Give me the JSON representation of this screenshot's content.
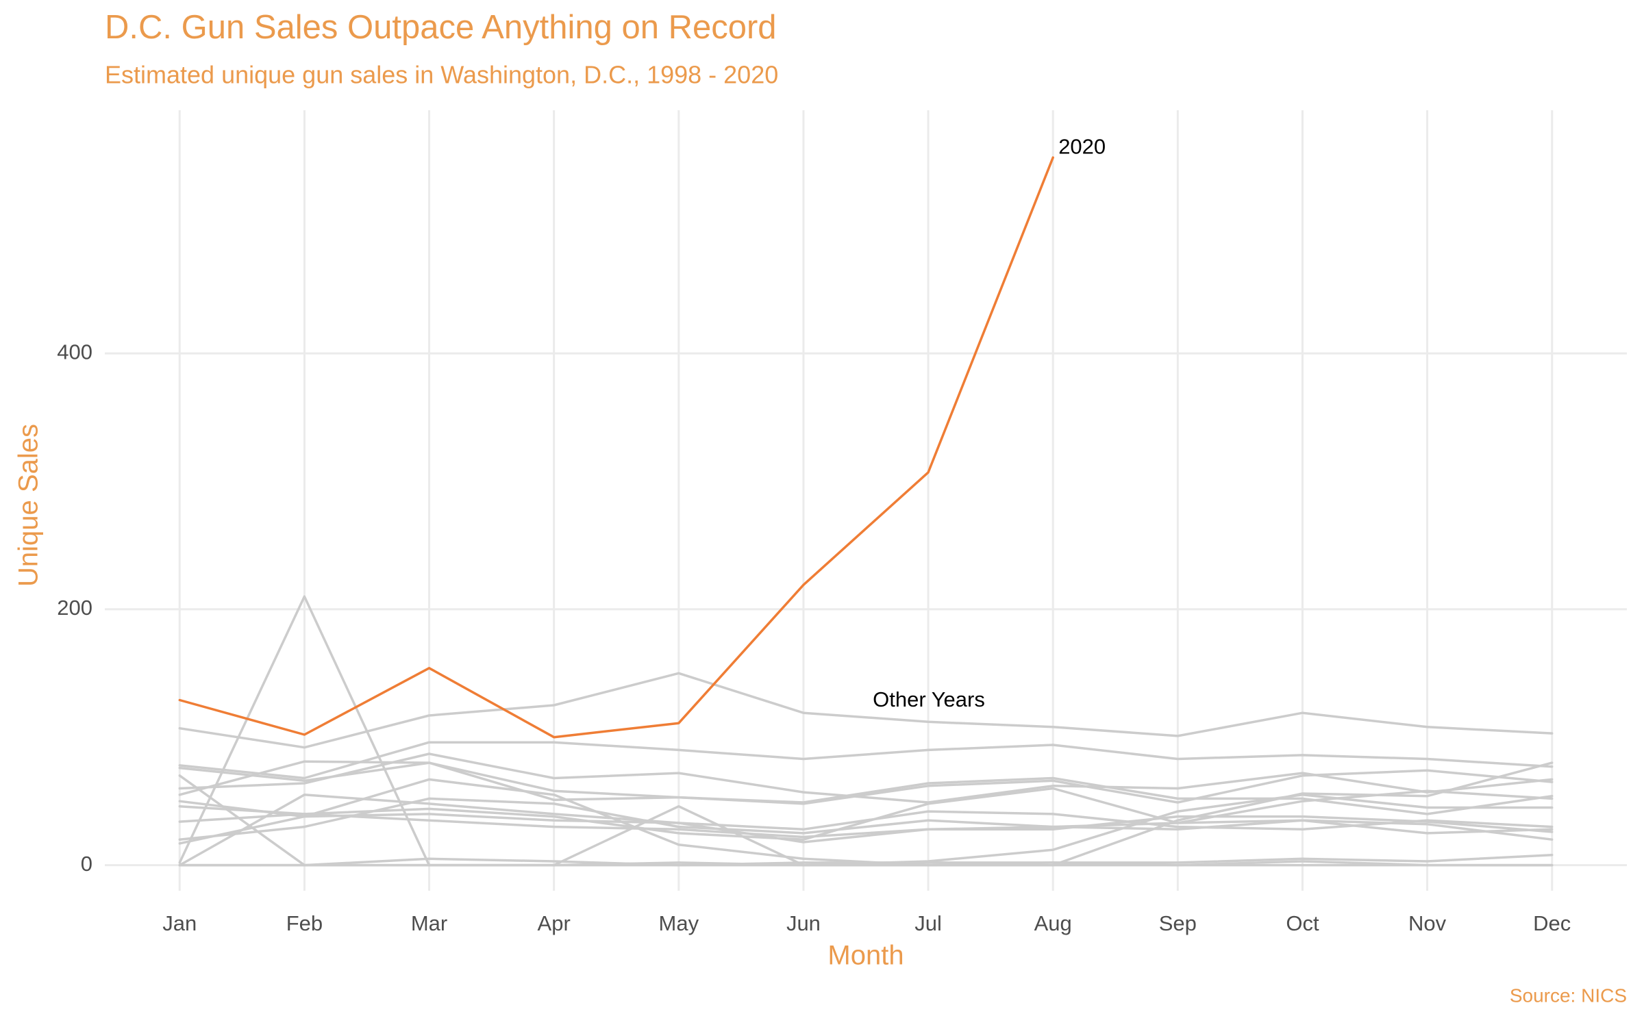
{
  "chart_data": {
    "type": "line",
    "title": "D.C. Gun Sales Outpace Anything on Record",
    "subtitle": "Estimated unique gun sales in Washington, D.C., 1998 - 2020",
    "x_label": "Month",
    "y_label": "Unique Sales",
    "caption": "Source: NICS",
    "annotations": [
      "Other Years"
    ],
    "categories": [
      "Jan",
      "Feb",
      "Mar",
      "Apr",
      "May",
      "Jun",
      "Jul",
      "Aug",
      "Sep",
      "Oct",
      "Nov",
      "Dec"
    ],
    "ylim": [
      -20,
      590
    ],
    "yticks": [
      0,
      200,
      400
    ],
    "grid": true,
    "series": [
      {
        "color": "#cccccc",
        "values": [
          107,
          92,
          117,
          125,
          150,
          119,
          112,
          108,
          101,
          119,
          108,
          103
        ]
      },
      {
        "color": "#cccccc",
        "values": [
          78,
          68,
          96,
          96,
          90,
          83,
          90,
          94,
          83,
          86,
          83,
          77
        ]
      },
      {
        "color": "#cccccc",
        "values": [
          76,
          66,
          80,
          58,
          53,
          48,
          62,
          66,
          49,
          70,
          74,
          65
        ]
      },
      {
        "color": "#cccccc",
        "values": [
          60,
          64,
          87,
          68,
          72,
          57,
          49,
          62,
          60,
          72,
          57,
          67
        ]
      },
      {
        "color": "#cccccc",
        "values": [
          55,
          81,
          80,
          51,
          53,
          49,
          64,
          68,
          52,
          52,
          40,
          54
        ]
      },
      {
        "color": "#cccccc",
        "values": [
          2,
          210,
          0,
          0,
          46,
          0,
          0,
          0,
          35,
          56,
          54,
          80
        ]
      },
      {
        "color": "#cccccc",
        "values": [
          46,
          40,
          44,
          38,
          25,
          20,
          48,
          60,
          33,
          50,
          58,
          52
        ]
      },
      {
        "color": "#cccccc",
        "values": [
          0,
          55,
          48,
          40,
          33,
          28,
          42,
          40,
          30,
          28,
          35,
          30
        ]
      },
      {
        "color": "#cccccc",
        "values": [
          20,
          30,
          52,
          48,
          30,
          25,
          35,
          30,
          33,
          35,
          32,
          20
        ]
      },
      {
        "color": "#cccccc",
        "values": [
          70,
          0,
          0,
          0,
          2,
          0,
          3,
          12,
          42,
          55,
          45,
          45
        ]
      },
      {
        "color": "#cccccc",
        "values": [
          34,
          40,
          35,
          30,
          28,
          22,
          28,
          28,
          38,
          38,
          34,
          26
        ]
      },
      {
        "color": "#cccccc",
        "values": [
          17,
          38,
          67,
          55,
          16,
          5,
          0,
          2,
          2,
          5,
          3,
          8
        ]
      },
      {
        "color": "#cccccc",
        "values": [
          0,
          0,
          5,
          3,
          0,
          2,
          2,
          2,
          0,
          3,
          0,
          0
        ]
      },
      {
        "color": "#cccccc",
        "values": [
          0,
          0,
          0,
          0,
          0,
          0,
          0,
          0,
          0,
          0,
          0,
          0
        ]
      },
      {
        "color": "#cccccc",
        "values": [
          50,
          38,
          40,
          35,
          33,
          18,
          28,
          30,
          28,
          35,
          25,
          28
        ]
      },
      {
        "name": "2020",
        "color": "#ef7d35",
        "values": [
          129,
          102,
          154,
          100,
          111,
          219,
          307,
          553,
          null,
          null,
          null,
          null
        ]
      }
    ]
  }
}
